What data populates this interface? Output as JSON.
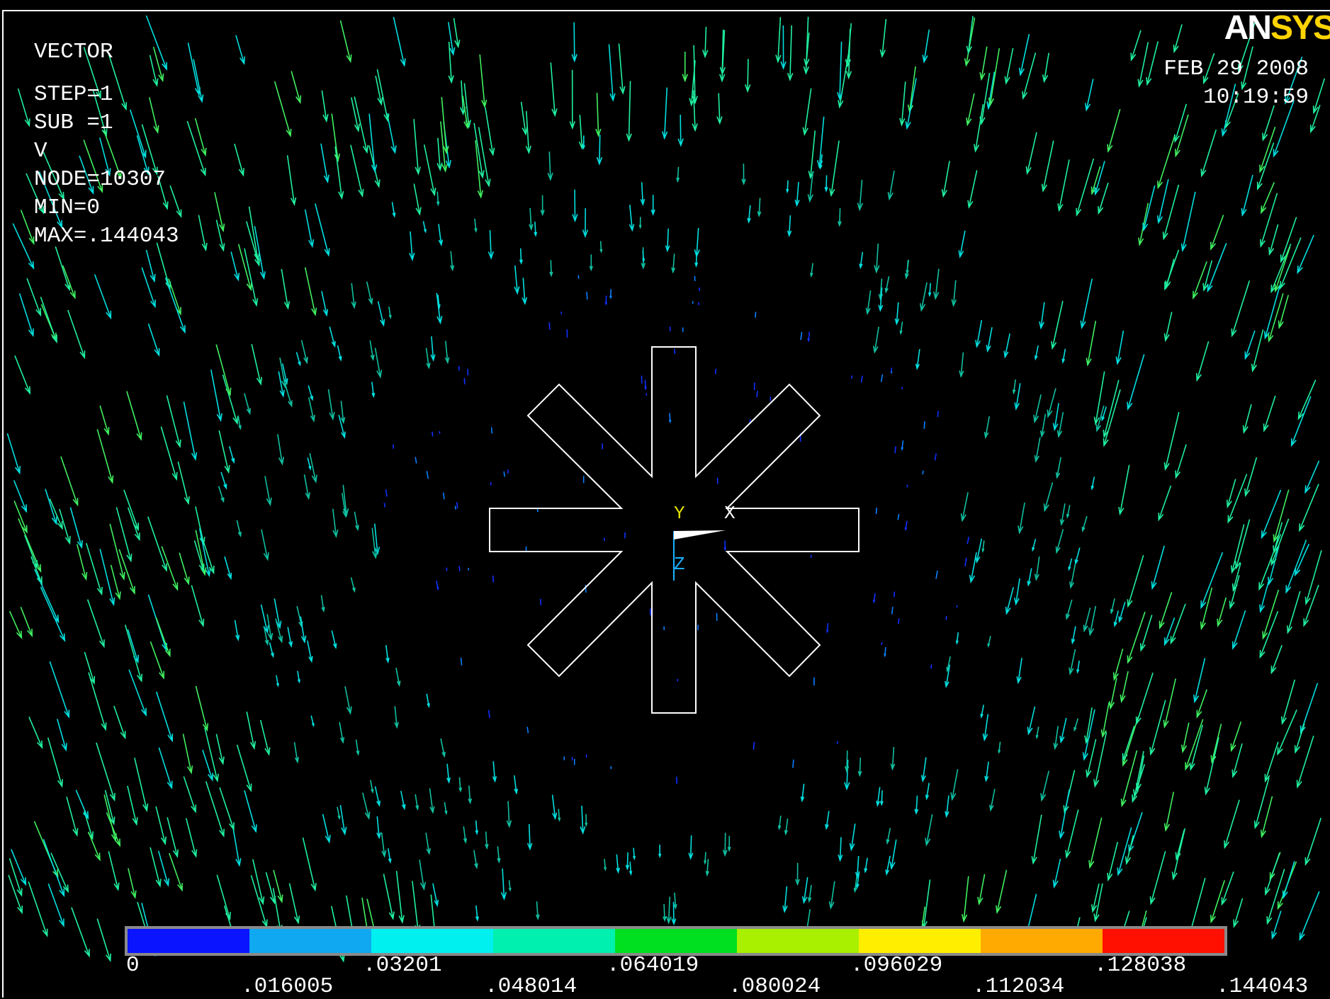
{
  "logo": {
    "part1": "AN",
    "part2": "SYS"
  },
  "info": {
    "lines": [
      "VECTOR",
      "",
      "STEP=1",
      "SUB =1",
      "V",
      "NODE=10307",
      "MIN=0",
      "MAX=.144043"
    ]
  },
  "timestamp": {
    "date": "FEB 29 2008",
    "time": "10:19:59"
  },
  "triad": {
    "y_label": "Y",
    "x_label": "X",
    "z_label": "Z"
  },
  "legend": {
    "colors": [
      "#0a14ff",
      "#10a8f0",
      "#00f0f0",
      "#00f0b0",
      "#00e020",
      "#a8f000",
      "#ffee00",
      "#ffaa00",
      "#ff1000"
    ],
    "ticks_upper": [
      "0",
      ".03201",
      ".064019",
      ".096029",
      ".128038"
    ],
    "ticks_lower": [
      ".016005",
      ".048014",
      ".080024",
      ".112034",
      ".144043"
    ]
  },
  "colors": {
    "arrow_green": "#20f0a0",
    "arrow_cyan": "#00f0f0",
    "arrow_blue": "#1030ff",
    "outline": "#ffffff"
  }
}
